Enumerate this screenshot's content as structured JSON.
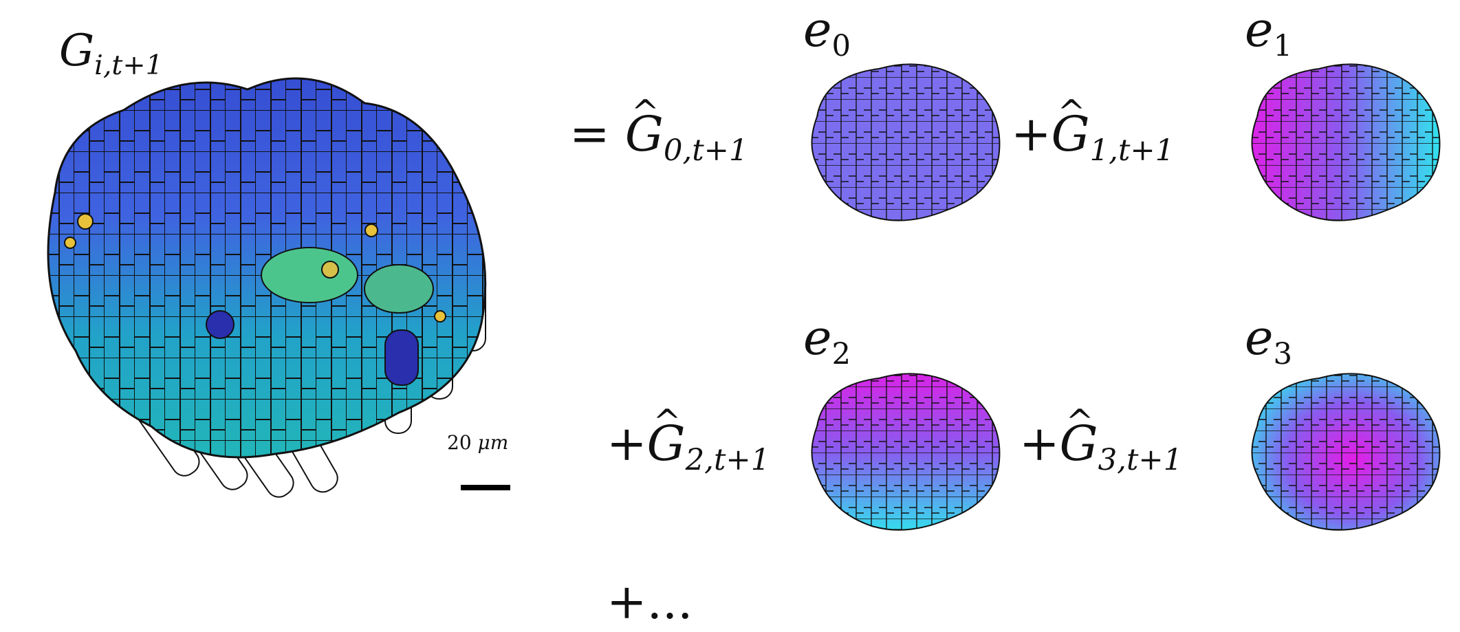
{
  "main_figure": {
    "label_symbol": "G",
    "label_subscript": "i,t+1",
    "scale_value": "20",
    "scale_unit": "μm"
  },
  "terms": [
    {
      "operator": "=",
      "coef_symbol": "G",
      "coef_subscript": "0,t+1",
      "basis_symbol": "e",
      "basis_index": "0"
    },
    {
      "operator": "+",
      "coef_symbol": "G",
      "coef_subscript": "1,t+1",
      "basis_symbol": "e",
      "basis_index": "1"
    },
    {
      "operator": "+",
      "coef_symbol": "G",
      "coef_subscript": "2,t+1",
      "basis_symbol": "e",
      "basis_index": "2"
    },
    {
      "operator": "+",
      "coef_symbol": "G",
      "coef_subscript": "3,t+1",
      "basis_symbol": "e",
      "basis_index": "3"
    }
  ],
  "continuation": "+...",
  "colors": {
    "main_blue": "#3a55d6",
    "main_teal": "#1aa9c2",
    "main_green": "#4cc58d",
    "main_yellow": "#e8c23a",
    "basis_violet": "#7b6ff0",
    "basis_magenta": "#e21ee6",
    "basis_cyan": "#2fe6ee"
  }
}
